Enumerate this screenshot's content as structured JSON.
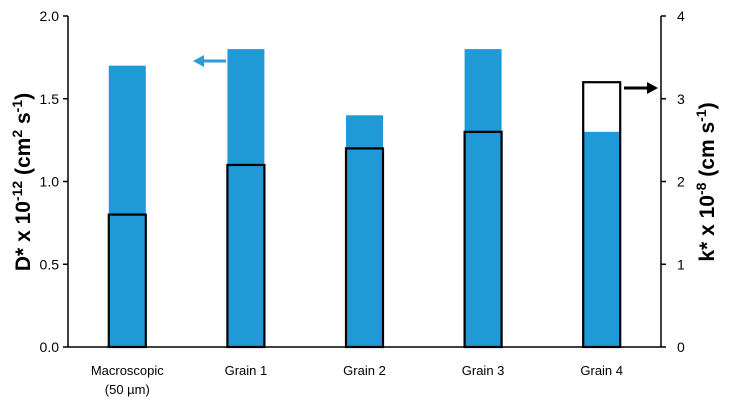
{
  "chart_data": {
    "type": "bar",
    "categories": [
      [
        "Macroscopic",
        "(50 µm)"
      ],
      [
        "Grain 1"
      ],
      [
        "Grain 2"
      ],
      [
        "Grain 3"
      ],
      [
        "Grain 4"
      ]
    ],
    "series": [
      {
        "axis": "left",
        "style": "filled",
        "values": [
          1.7,
          1.8,
          1.4,
          1.8,
          1.3
        ]
      },
      {
        "axis": "right",
        "style": "outlined",
        "values": [
          1.6,
          2.2,
          2.4,
          2.6,
          3.2
        ]
      }
    ],
    "ylabel_left": {
      "base": "D* x 10",
      "exp": "-12",
      "unit_open": " (cm",
      "unit_exp1": "2",
      "unit_mid": " s",
      "unit_exp2": "-1",
      "unit_close": ")"
    },
    "ylabel_right": {
      "base": "k* x 10",
      "exp": "-8",
      "unit_open": " (cm s",
      "unit_exp": "-1",
      "unit_close": ")"
    },
    "ylim_left": [
      0,
      2.0
    ],
    "yticks_left": [
      "0.0",
      "0.5",
      "1.0",
      "1.5",
      "2.0"
    ],
    "ylim_right": [
      0,
      4
    ],
    "yticks_right": [
      "0",
      "1",
      "2",
      "3",
      "4"
    ],
    "grid": false,
    "legend": "none",
    "annotations": [
      {
        "type": "arrow",
        "direction": "left",
        "meaning": "filled bars use left axis",
        "color": "#2a9fd6"
      },
      {
        "type": "arrow",
        "direction": "right",
        "meaning": "outlined bars use right axis",
        "color": "#000000"
      }
    ],
    "colors": {
      "filled": "#1f9ad6",
      "outline": "#000000",
      "axis": "#000000"
    }
  }
}
